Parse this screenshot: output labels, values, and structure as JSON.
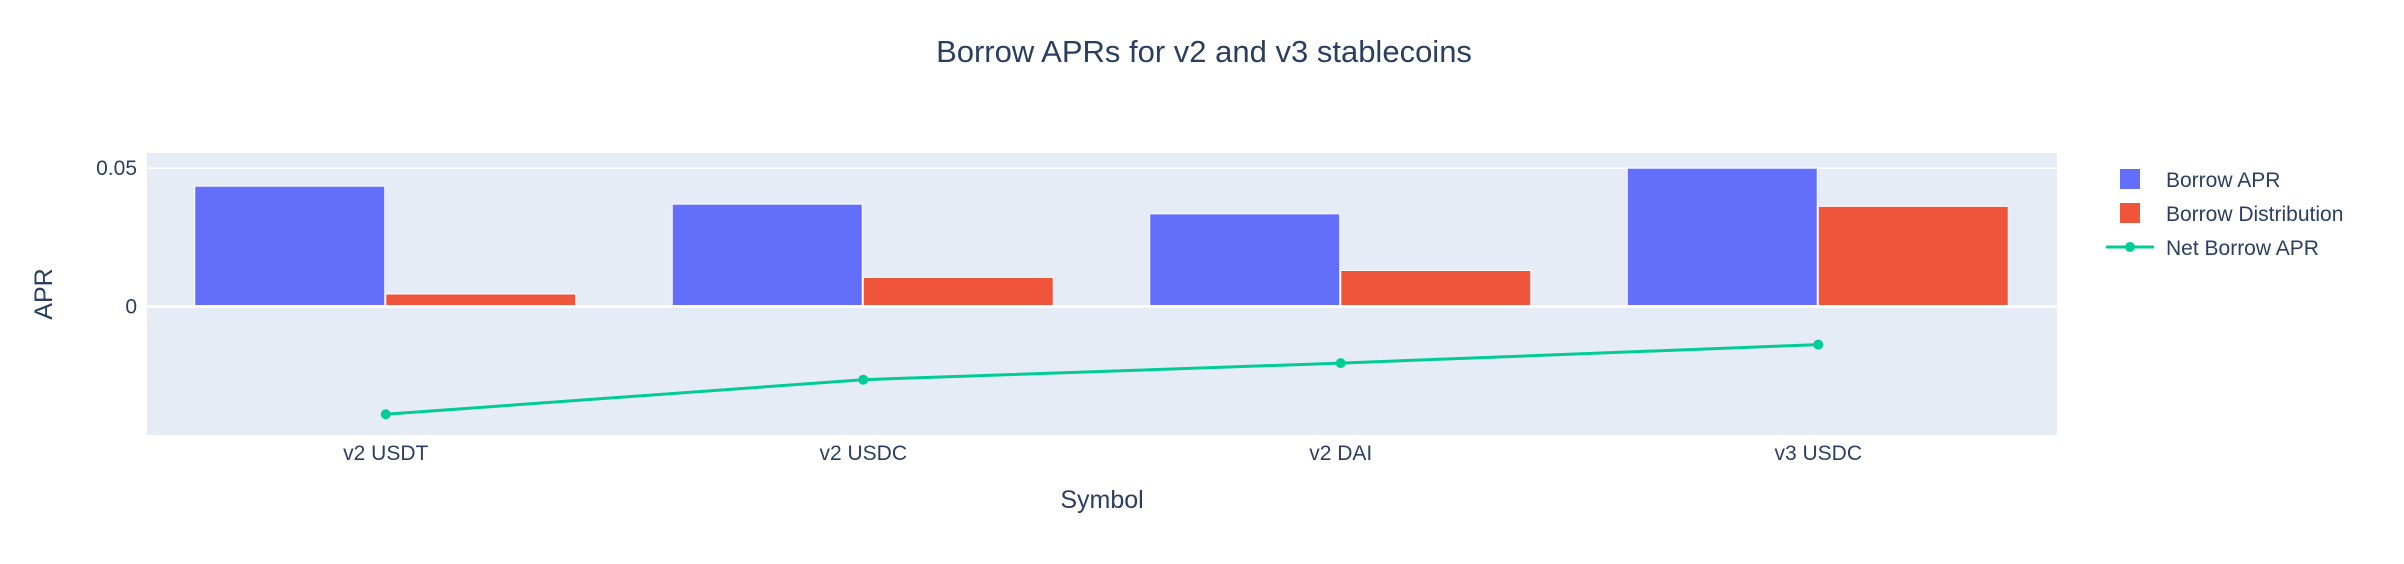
{
  "chart_data": {
    "type": "bar",
    "title": "Borrow APRs for v2 and v3 stablecoins",
    "xlabel": "Symbol",
    "ylabel": "APR",
    "categories": [
      "v2 USDT",
      "v2 USDC",
      "v2 DAI",
      "v3 USDC"
    ],
    "y_ticks": [
      {
        "label": "0.05",
        "value": 0.05
      },
      {
        "label": "0",
        "value": 0
      }
    ],
    "ylim": [
      -0.0465,
      0.0555
    ],
    "grid": true,
    "legend_position": "right",
    "series": [
      {
        "name": "Borrow APR",
        "type": "bar",
        "color": "#636efa",
        "values": [
          0.0435,
          0.037,
          0.0335,
          0.05
        ]
      },
      {
        "name": "Borrow Distribution",
        "type": "bar",
        "color": "#ef553b",
        "values": [
          0.0045,
          0.0105,
          0.013,
          0.0362
        ]
      },
      {
        "name": "Net Borrow APR",
        "type": "line",
        "color": "#00cc96",
        "values": [
          -0.039,
          -0.0265,
          -0.0205,
          -0.0138
        ]
      }
    ]
  }
}
